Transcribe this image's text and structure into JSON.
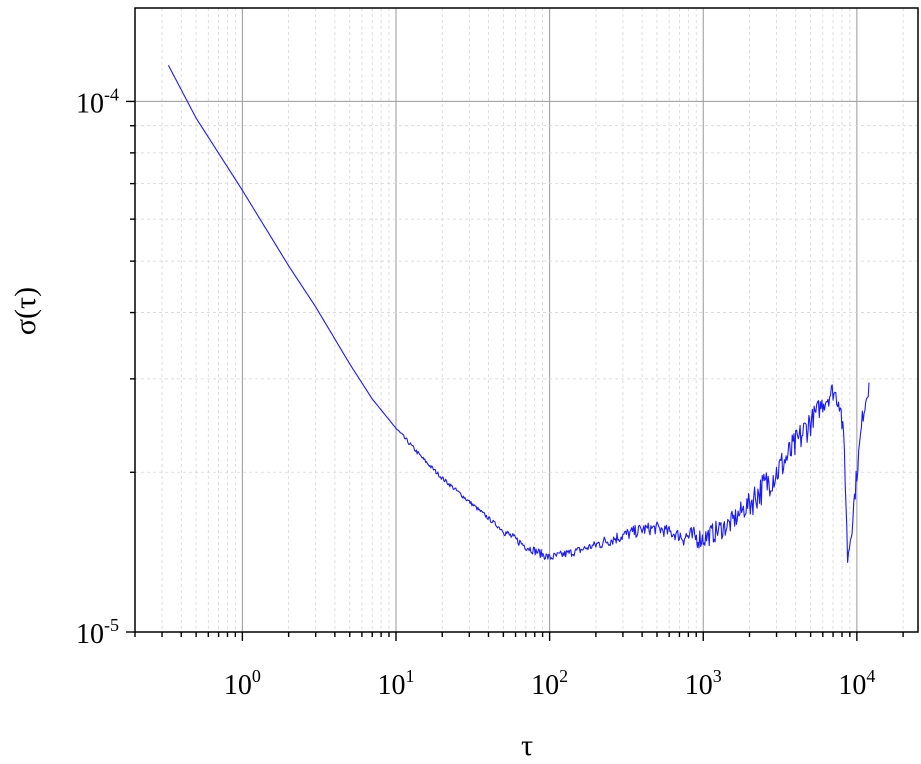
{
  "chart_data": {
    "type": "line",
    "title": "",
    "xlabel": "τ",
    "ylabel": "σ(τ)",
    "xscale": "log",
    "yscale": "log",
    "xlim": [
      0.2,
      25000
    ],
    "ylim": [
      1e-05,
      0.00015
    ],
    "grid": "major and minor",
    "legend": "none",
    "line_color": "#1a1aff",
    "x_ticks": [
      {
        "base": "10",
        "exp": "0",
        "value": 1
      },
      {
        "base": "10",
        "exp": "1",
        "value": 10
      },
      {
        "base": "10",
        "exp": "2",
        "value": 100
      },
      {
        "base": "10",
        "exp": "3",
        "value": 1000
      },
      {
        "base": "10",
        "exp": "4",
        "value": 10000
      }
    ],
    "y_ticks": [
      {
        "base": "10",
        "exp": "-5",
        "value": 1e-05
      },
      {
        "base": "10",
        "exp": "-4",
        "value": 0.0001
      }
    ],
    "series": [
      {
        "points": [
          [
            0.33,
            0.000117
          ],
          [
            0.5,
            9.3e-05
          ],
          [
            1,
            6.8e-05
          ],
          [
            2,
            4.9e-05
          ],
          [
            3,
            4.1e-05
          ],
          [
            5,
            3.2e-05
          ],
          [
            7,
            2.75e-05
          ],
          [
            10,
            2.42e-05
          ],
          [
            15,
            2.12e-05
          ],
          [
            20,
            1.95e-05
          ],
          [
            30,
            1.76e-05
          ],
          [
            50,
            1.55e-05
          ],
          [
            70,
            1.45e-05
          ],
          [
            100,
            1.38e-05
          ],
          [
            150,
            1.42e-05
          ],
          [
            200,
            1.46e-05
          ],
          [
            300,
            1.52e-05
          ],
          [
            400,
            1.56e-05
          ],
          [
            500,
            1.57e-05
          ],
          [
            700,
            1.52e-05
          ],
          [
            1000,
            1.5e-05
          ],
          [
            1500,
            1.6e-05
          ],
          [
            2000,
            1.75e-05
          ],
          [
            3000,
            2e-05
          ],
          [
            4000,
            2.25e-05
          ],
          [
            5000,
            2.5e-05
          ],
          [
            6000,
            2.7e-05
          ],
          [
            7000,
            2.85e-05
          ],
          [
            7800,
            2.7e-05
          ],
          [
            8300,
            2.2e-05
          ],
          [
            8700,
            1.38e-05
          ],
          [
            9200,
            1.55e-05
          ],
          [
            10000,
            2e-05
          ],
          [
            11000,
            2.6e-05
          ],
          [
            12000,
            2.95e-05
          ]
        ]
      }
    ]
  }
}
